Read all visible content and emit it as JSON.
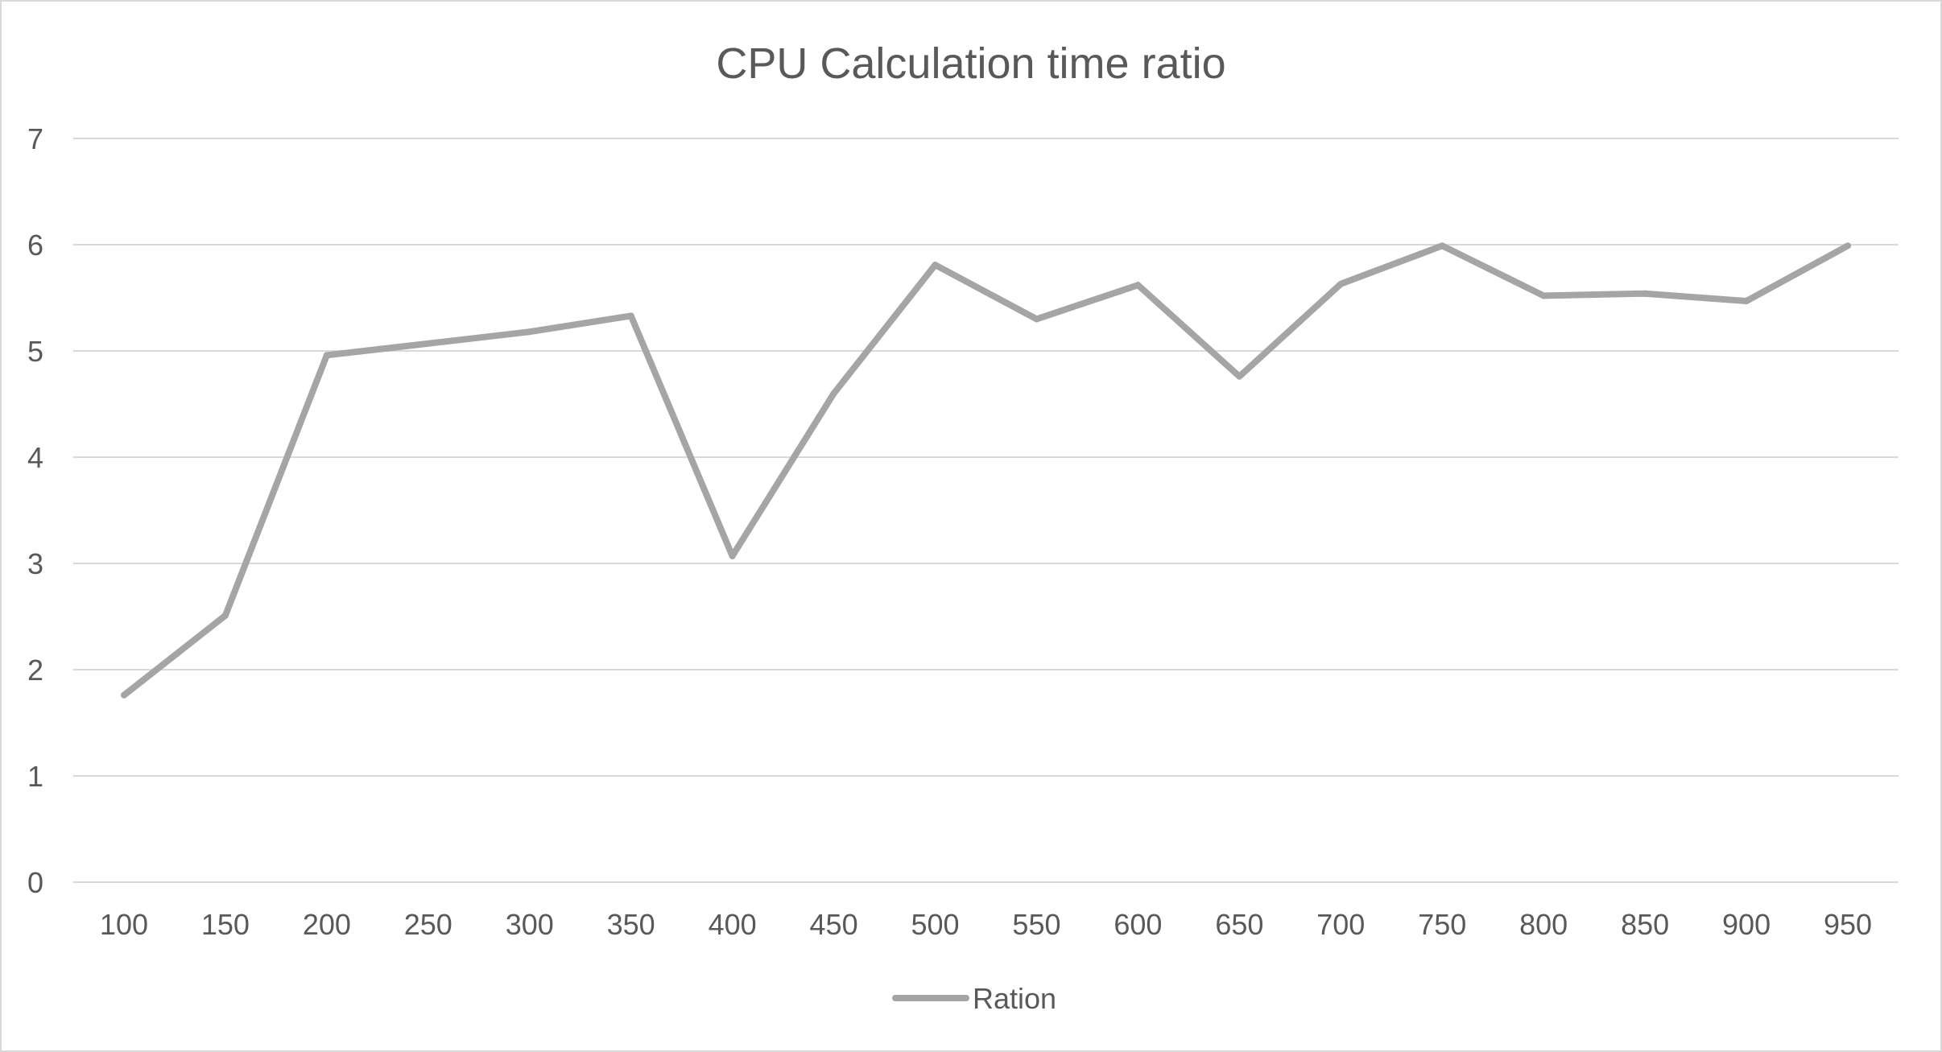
{
  "chart_data": {
    "type": "line",
    "title": "CPU Calculation time ratio",
    "xlabel": "",
    "ylabel": "",
    "x": [
      100,
      150,
      200,
      250,
      300,
      350,
      400,
      450,
      500,
      550,
      600,
      650,
      700,
      750,
      800,
      850,
      900,
      950
    ],
    "series": [
      {
        "name": "Ration",
        "values": [
          1.76,
          2.51,
          4.96,
          5.07,
          5.18,
          5.33,
          3.07,
          4.6,
          5.81,
          5.3,
          5.62,
          4.76,
          5.63,
          5.99,
          5.52,
          5.54,
          5.47,
          5.99
        ],
        "color": "#a5a5a5"
      }
    ],
    "ylim": [
      0,
      7
    ],
    "yticks": [
      0,
      1,
      2,
      3,
      4,
      5,
      6,
      7
    ],
    "grid": true,
    "legend_position": "bottom",
    "colors": {
      "grid": "#d9d9d9",
      "text": "#595959",
      "line": "#a5a5a5"
    }
  }
}
